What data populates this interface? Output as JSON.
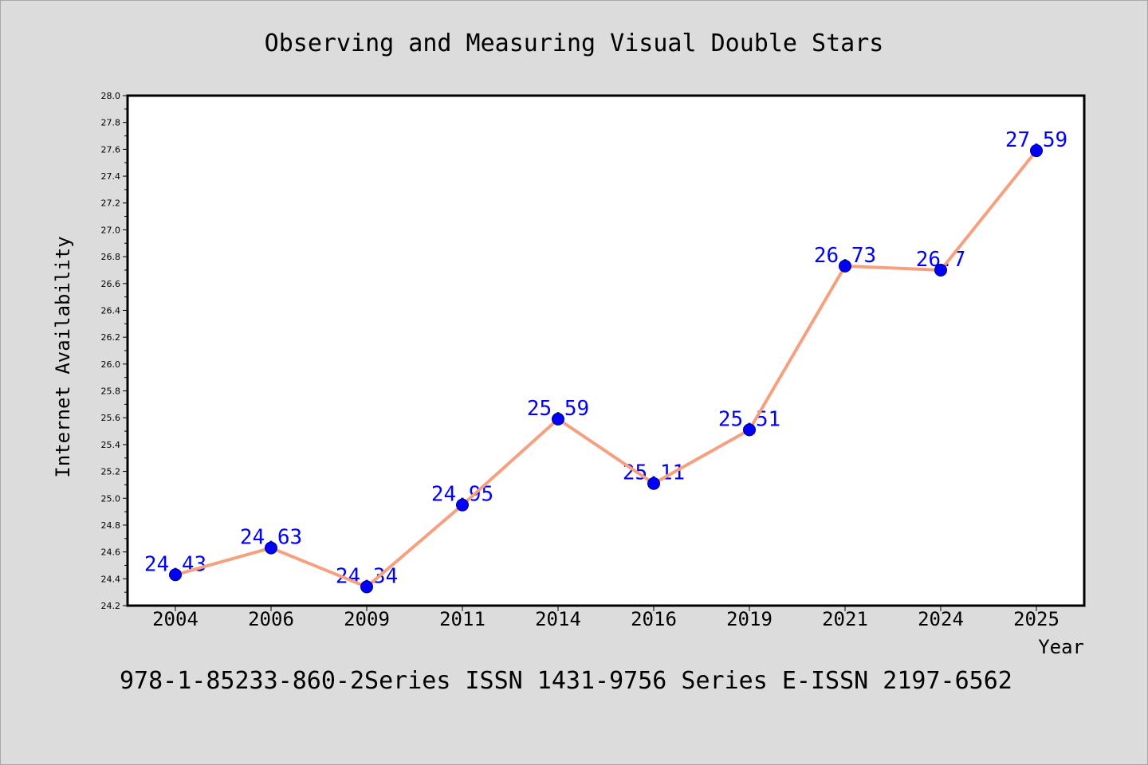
{
  "chart_data": {
    "type": "line",
    "title": "Observing and Measuring Visual Double Stars",
    "xlabel": "Year",
    "ylabel": "Internet Availability",
    "categories": [
      "2004",
      "2006",
      "2009",
      "2011",
      "2014",
      "2016",
      "2019",
      "2021",
      "2024",
      "2025"
    ],
    "series": [
      {
        "values": [
          24.43,
          24.63,
          24.34,
          24.95,
          25.59,
          25.11,
          25.51,
          26.73,
          26.7,
          27.59
        ],
        "marker": "circle",
        "show_data_labels": true
      }
    ],
    "ylim": [
      24.2,
      28.0
    ],
    "yticks": [
      "24.2",
      "24.4",
      "24.6",
      "24.8",
      "25.0",
      "25.2",
      "25.4",
      "25.6",
      "25.8",
      "26.0",
      "26.2",
      "26.4",
      "26.6",
      "26.8",
      "27.0",
      "27.2",
      "27.4",
      "27.6",
      "27.8",
      "28.0"
    ],
    "grid": false,
    "legend": "none"
  },
  "footnote": "978-1-85233-860-2Series ISSN 1431-9756 Series E-ISSN 2197-6562",
  "colors": {
    "background": "#dcdcdc",
    "plot_background": "#ffffff",
    "frame": "#000000",
    "axis": "#000000",
    "text": "#000000",
    "line": "#f5a07f",
    "marker": "#0000ff",
    "marker_edge": "#00007a",
    "data_label": "#0000ff"
  }
}
